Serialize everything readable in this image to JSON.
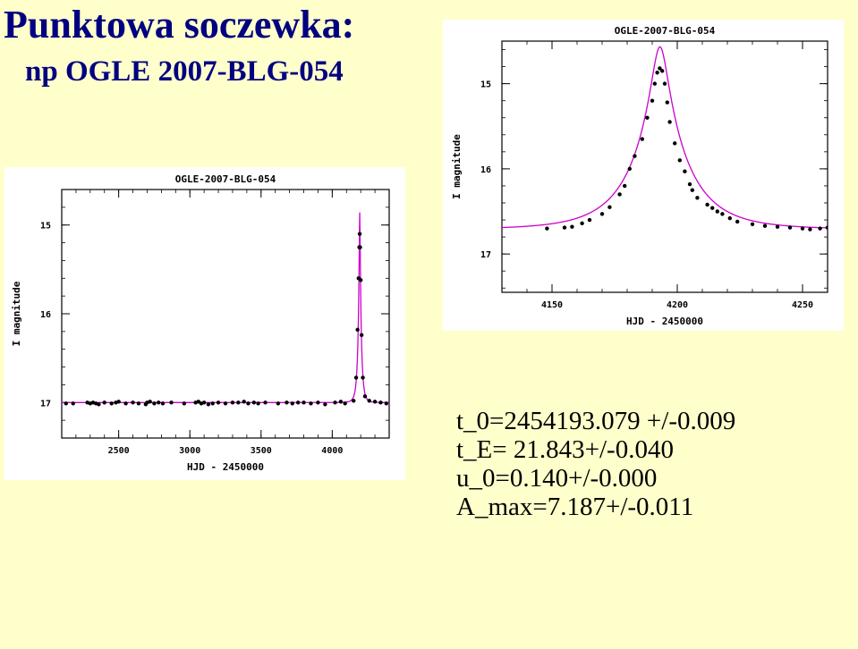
{
  "slide": {
    "title": "Punktowa soczewka:",
    "subtitle": "np OGLE 2007-BLG-054",
    "params": [
      "t_0=2454193.079 +/-0.009",
      "t_E= 21.843+/-0.040",
      "u_0=0.140+/-0.000",
      "A_max=7.187+/-0.011"
    ]
  },
  "chart_data": [
    {
      "type": "scatter",
      "title": "OGLE-2007-BLG-054",
      "xlabel": "HJD - 2450000",
      "ylabel": "I magnitude",
      "xlim": [
        2100,
        4400
      ],
      "ylim": [
        17.4,
        14.6
      ],
      "xticks": [
        2500,
        3000,
        3500,
        4000
      ],
      "yticks": [
        15,
        16,
        17
      ],
      "grid": false,
      "colors": {
        "points": "#000000",
        "model": "#cc00cc"
      },
      "series": [
        {
          "kind": "points",
          "x": [
            2130,
            2180,
            2280,
            2300,
            2320,
            2340,
            2360,
            2400,
            2450,
            2480,
            2500,
            2550,
            2600,
            2640,
            2690,
            2700,
            2720,
            2750,
            2780,
            2810,
            2870,
            2960,
            3040,
            3060,
            3080,
            3100,
            3130,
            3160,
            3200,
            3250,
            3300,
            3340,
            3380,
            3410,
            3450,
            3480,
            3530,
            3620,
            3680,
            3720,
            3760,
            3800,
            3850,
            3900,
            3950,
            4020,
            4060,
            4090,
            4150,
            4168,
            4178,
            4185,
            4190,
            4193,
            4196,
            4200,
            4206,
            4215,
            4230,
            4260,
            4300,
            4340,
            4380
          ],
          "y": [
            17.01,
            17.01,
            17.0,
            17.01,
            17.0,
            17.01,
            17.02,
            17.0,
            17.01,
            17.0,
            16.99,
            17.01,
            17.0,
            17.01,
            17.02,
            17.0,
            16.99,
            17.01,
            17.0,
            17.01,
            17.0,
            17.01,
            17.0,
            16.99,
            17.01,
            17.0,
            17.02,
            17.01,
            17.0,
            17.01,
            17.0,
            17.0,
            16.99,
            17.01,
            17.0,
            17.01,
            17.0,
            17.01,
            17.0,
            17.01,
            17.0,
            17.0,
            17.01,
            17.0,
            17.02,
            17.0,
            16.99,
            17.01,
            16.98,
            16.72,
            16.18,
            15.6,
            15.25,
            15.1,
            15.25,
            15.62,
            16.24,
            16.72,
            16.93,
            16.98,
            16.99,
            17.0,
            17.01
          ]
        },
        {
          "kind": "model",
          "t0": 4193.079,
          "tE": 21.843,
          "u0": 0.14,
          "baseline": 17.0
        }
      ]
    },
    {
      "type": "scatter",
      "title": "OGLE-2007-BLG-054",
      "xlabel": "HJD - 2450000",
      "ylabel": "I magnitude",
      "xlim": [
        4130,
        4260
      ],
      "ylim": [
        17.45,
        14.5
      ],
      "xticks": [
        4150,
        4200,
        4250
      ],
      "yticks": [
        15,
        16,
        17
      ],
      "grid": false,
      "colors": {
        "points": "#000000",
        "model": "#cc00cc"
      },
      "series": [
        {
          "kind": "points",
          "x": [
            4148,
            4155,
            4158,
            4162,
            4165,
            4170,
            4173,
            4177,
            4179,
            4181,
            4183,
            4186,
            4188,
            4190,
            4191,
            4192,
            4193,
            4194,
            4195,
            4196,
            4197,
            4199,
            4201,
            4203,
            4205,
            4206,
            4208,
            4212,
            4214,
            4216,
            4218,
            4221,
            4224,
            4230,
            4235,
            4240,
            4245,
            4250,
            4253,
            4257,
            4260
          ],
          "y": [
            16.7,
            16.69,
            16.68,
            16.64,
            16.6,
            16.53,
            16.45,
            16.3,
            16.2,
            16.0,
            15.85,
            15.65,
            15.4,
            15.2,
            15.0,
            14.87,
            14.82,
            14.85,
            15.0,
            15.22,
            15.45,
            15.7,
            15.9,
            16.03,
            16.18,
            16.25,
            16.34,
            16.42,
            16.46,
            16.5,
            16.53,
            16.58,
            16.62,
            16.65,
            16.67,
            16.68,
            16.69,
            16.7,
            16.71,
            16.7,
            16.69
          ]
        },
        {
          "kind": "model",
          "t0": 4193.079,
          "tE": 21.843,
          "u0": 0.14,
          "baseline": 16.71
        }
      ]
    }
  ]
}
